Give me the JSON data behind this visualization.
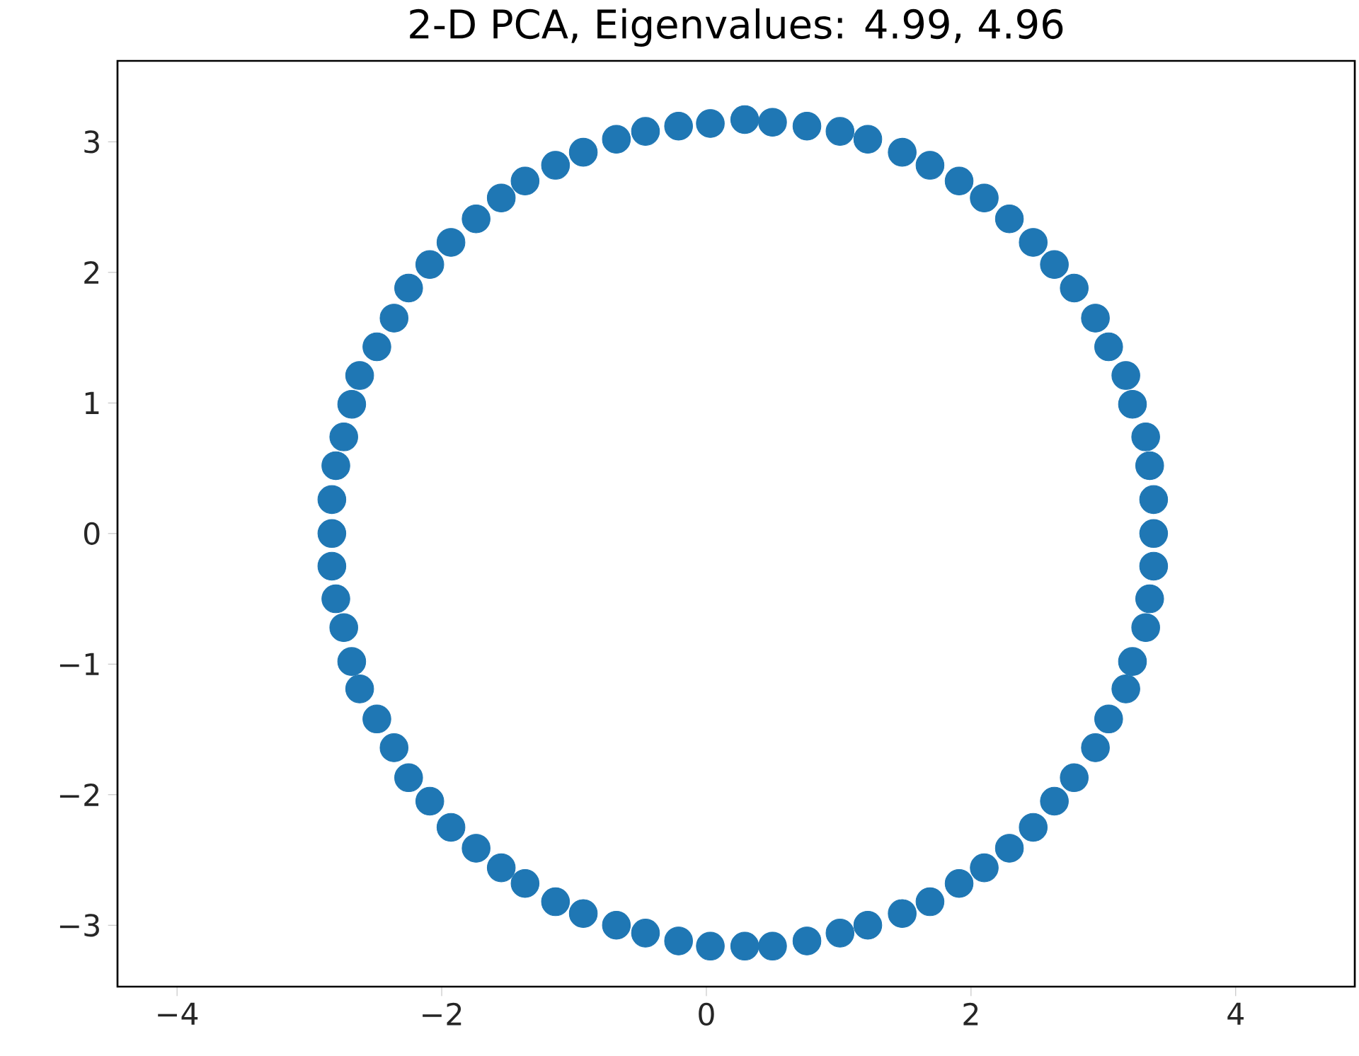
{
  "chart_data": {
    "type": "scatter",
    "title": "2-D PCA, Eigenvalues: 4.99, 4.96",
    "x": [
      -2.83,
      -2.83,
      -2.8,
      -2.74,
      -2.68,
      -2.62,
      -2.49,
      -2.36,
      -2.25,
      -2.09,
      -1.93,
      -1.74,
      -1.55,
      -1.37,
      -1.14,
      -0.93,
      -0.68,
      -0.46,
      -0.21,
      0.03,
      0.29,
      0.5,
      0.76,
      1.01,
      1.22,
      1.48,
      1.69,
      1.91,
      2.1,
      2.29,
      2.47,
      2.63,
      2.78,
      2.94,
      3.04,
      3.17,
      3.22,
      3.32,
      3.35,
      3.38,
      3.38,
      3.38,
      3.35,
      3.32,
      3.22,
      3.17,
      3.04,
      2.94,
      2.78,
      2.63,
      2.47,
      2.29,
      2.1,
      1.91,
      1.69,
      1.48,
      1.22,
      1.01,
      0.76,
      0.5,
      0.29,
      0.03,
      -0.21,
      -0.46,
      -0.68,
      -0.93,
      -1.14,
      -1.37,
      -1.55,
      -1.74,
      -1.93,
      -2.09,
      -2.25,
      -2.36,
      -2.49,
      -2.62,
      -2.68,
      -2.74,
      -2.8,
      -2.83
    ],
    "values": [
      0.0,
      0.26,
      0.52,
      0.74,
      0.99,
      1.21,
      1.43,
      1.65,
      1.88,
      2.06,
      2.23,
      2.41,
      2.57,
      2.7,
      2.82,
      2.92,
      3.02,
      3.08,
      3.12,
      3.14,
      3.17,
      3.15,
      3.12,
      3.08,
      3.02,
      2.92,
      2.82,
      2.7,
      2.57,
      2.41,
      2.23,
      2.06,
      1.88,
      1.65,
      1.43,
      1.21,
      0.99,
      0.74,
      0.52,
      0.26,
      0.0,
      -0.25,
      -0.5,
      -0.72,
      -0.98,
      -1.19,
      -1.42,
      -1.64,
      -1.87,
      -2.05,
      -2.25,
      -2.41,
      -2.56,
      -2.68,
      -2.82,
      -2.91,
      -3.0,
      -3.06,
      -3.12,
      -3.16,
      -3.16,
      -3.16,
      -3.12,
      -3.06,
      -3.0,
      -2.91,
      -2.82,
      -2.68,
      -2.56,
      -2.41,
      -2.25,
      -2.05,
      -1.87,
      -1.64,
      -1.42,
      -1.19,
      -0.98,
      -0.72,
      -0.5,
      -0.25
    ],
    "color": "#1f77b4",
    "xlim": [
      -4.45,
      4.9
    ],
    "ylim": [
      -3.47,
      3.62
    ],
    "xticks": [
      {
        "value": -4,
        "label": "−4"
      },
      {
        "value": -2,
        "label": "−2"
      },
      0,
      2,
      4
    ],
    "yticks": [
      {
        "value": -3,
        "label": "−3"
      },
      {
        "value": -2,
        "label": "−2"
      },
      {
        "value": -1,
        "label": "−1"
      },
      0,
      1,
      2,
      3
    ]
  }
}
